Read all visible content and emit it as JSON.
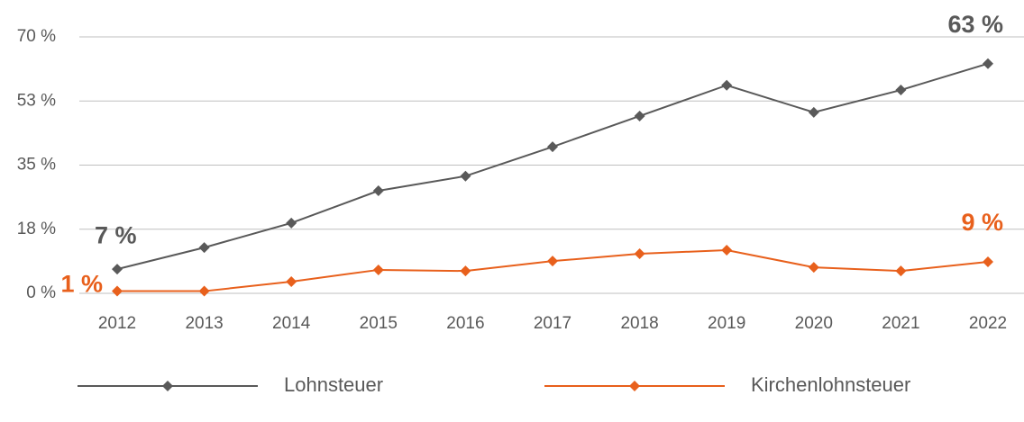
{
  "chart_data": {
    "type": "line",
    "categories": [
      "2012",
      "2013",
      "2014",
      "2015",
      "2016",
      "2017",
      "2018",
      "2019",
      "2020",
      "2021",
      "2022"
    ],
    "series": [
      {
        "name": "Lohnsteuer",
        "color": "#595959",
        "values": [
          6.6,
          12.5,
          19.2,
          28,
          32,
          40,
          48.4,
          56.8,
          49.4,
          55.5,
          62.7
        ],
        "value_labels": [
          "7 %",
          null,
          null,
          null,
          null,
          null,
          null,
          null,
          null,
          null,
          "63 %"
        ]
      },
      {
        "name": "Kirchenlohnsteuer",
        "color": "#e8601c",
        "values": [
          0.6,
          0.6,
          3.2,
          6.4,
          6.1,
          8.8,
          10.8,
          11.8,
          7.1,
          6.1,
          8.6
        ],
        "value_labels": [
          "1 %",
          null,
          null,
          null,
          null,
          null,
          null,
          null,
          null,
          null,
          "9 %"
        ]
      }
    ],
    "ylim": [
      0,
      70
    ],
    "yticks": [
      {
        "value": 0,
        "label": "0 %"
      },
      {
        "value": 17.5,
        "label": "18 %"
      },
      {
        "value": 35,
        "label": "35 %"
      },
      {
        "value": 52.5,
        "label": "53 %"
      },
      {
        "value": 70,
        "label": "70 %"
      }
    ],
    "grid": true,
    "legend": "bottom"
  }
}
